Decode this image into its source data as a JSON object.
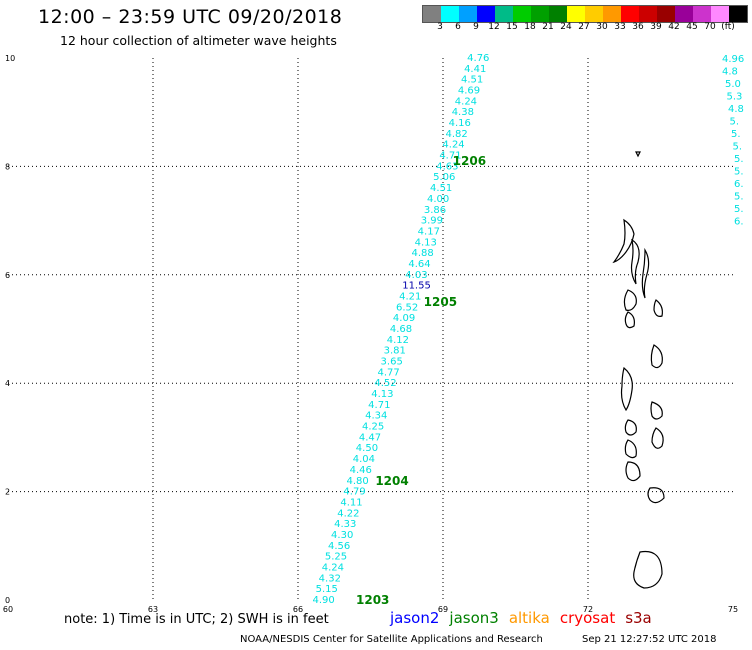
{
  "header": {
    "title": "12:00 – 23:59 UTC 09/20/2018",
    "subtitle": "12 hour collection of altimeter wave heights"
  },
  "colorbar": {
    "colors": [
      "#808080",
      "#00ffff",
      "#00a0ff",
      "#0000ff",
      "#00bb88",
      "#00cc00",
      "#00a000",
      "#008000",
      "#ffff00",
      "#ffcc00",
      "#ff9900",
      "#ff0000",
      "#cc0000",
      "#990000",
      "#990099",
      "#cc33cc",
      "#ff88ff",
      "#000000"
    ],
    "labels": [
      "3",
      "6",
      "9",
      "12",
      "15",
      "18",
      "21",
      "24",
      "27",
      "30",
      "33",
      "36",
      "39",
      "42",
      "45",
      "70",
      "(ft)"
    ]
  },
  "axes": {
    "x_ticks": [
      "60",
      "63",
      "66",
      "69",
      "72",
      "75"
    ],
    "y_ticks": [
      "0",
      "2",
      "4",
      "6",
      "8",
      "10"
    ]
  },
  "chart_data": {
    "type": "scatter",
    "xlim": [
      60,
      75
    ],
    "ylim": [
      0,
      10
    ],
    "track_1": {
      "name": "",
      "lon_start": 66.3,
      "lat_start": 0.0,
      "lon_end": 69.5,
      "lat_end": 10.0,
      "values": [
        "4.90",
        "5.15",
        "4.32",
        "4.24",
        "5.25",
        "4.56",
        "4.30",
        "4.33",
        "4.22",
        "4.11",
        "4.79",
        "4.80",
        "4.46",
        "4.04",
        "4.50",
        "4.47",
        "4.25",
        "4.34",
        "4.71",
        "4.13",
        "4.52",
        "4.77",
        "3.65",
        "3.81",
        "4.12",
        "4.68",
        "4.09",
        "6.52",
        "4.21",
        "11.55",
        "4.03",
        "4.64",
        "4.88",
        "4.13",
        "4.17",
        "3.99",
        "3.86",
        "4.00",
        "4.51",
        "5.06",
        "4.63",
        "4.71",
        "4.24",
        "4.82",
        "4.16",
        "4.38",
        "4.24",
        "4.69",
        "4.51",
        "4.41",
        "4.76"
      ],
      "highlight_index": 29
    },
    "track_2_partial": {
      "values": [
        "4.96",
        "4.8",
        "5.0",
        "5.3",
        "4.8",
        "5.",
        "5.",
        "5.",
        "5.",
        "5.",
        "6.",
        "5.",
        "5.",
        "6."
      ]
    },
    "pass_labels": [
      {
        "text": "1203",
        "lon": 67.2,
        "lat": 0.0
      },
      {
        "text": "1204",
        "lon": 67.6,
        "lat": 2.2
      },
      {
        "text": "1205",
        "lon": 68.6,
        "lat": 5.5
      },
      {
        "text": "1206",
        "lon": 69.2,
        "lat": 8.1
      }
    ]
  },
  "footer": {
    "note": "note:  1) Time is in UTC;  2) SWH is in feet",
    "satellites": [
      {
        "name": "jason2",
        "color": "#0000ff"
      },
      {
        "name": "jason3",
        "color": "#008000"
      },
      {
        "name": "altika",
        "color": "#ff9900"
      },
      {
        "name": "cryosat",
        "color": "#ff0000"
      },
      {
        "name": "s3a",
        "color": "#990000"
      }
    ],
    "credit": "NOAA/NESDIS Center for Satellite Applications and Research",
    "timestamp": "Sep 21 12:27:52 UTC 2018"
  },
  "colors": {
    "track": "#00e0e0",
    "highlight": "#0000aa",
    "pass_label": "#008000"
  }
}
